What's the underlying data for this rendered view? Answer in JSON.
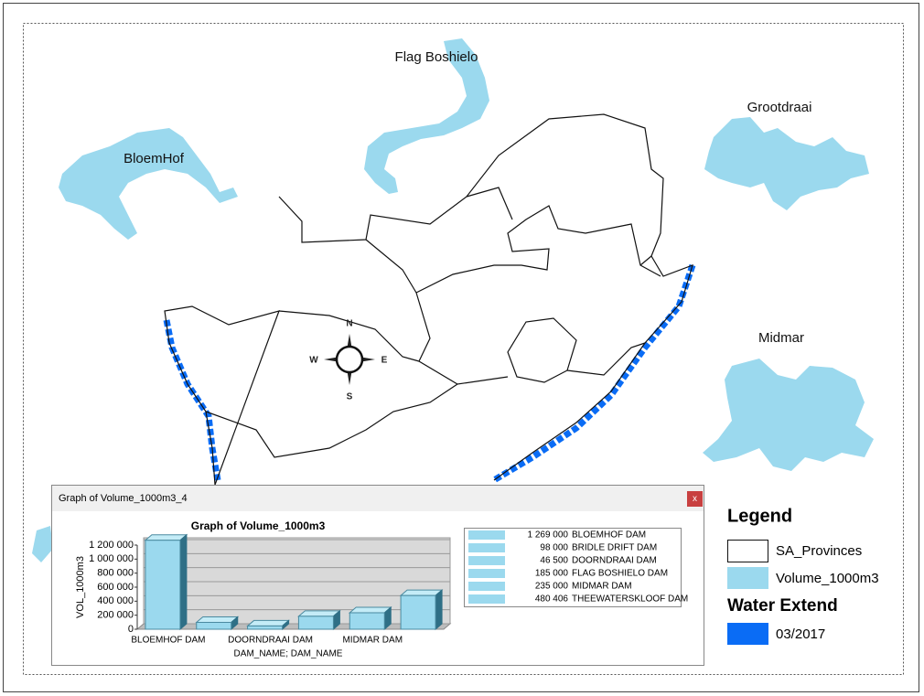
{
  "map": {
    "labels": [
      "Flag Boshielo",
      "Grootdraai",
      "BloemHof",
      "Midmar"
    ],
    "compass": [
      "N",
      "E",
      "S",
      "W"
    ]
  },
  "legend": {
    "title": "Legend",
    "items": [
      "SA_Provinces",
      "Volume_1000m3"
    ],
    "subtitle": "Water Extend",
    "items2": [
      "03/2017"
    ]
  },
  "window": {
    "title": "Graph of Volume_1000m3_4",
    "close": "x"
  },
  "chart_data": {
    "type": "bar3d",
    "title": "Graph of Volume_1000m3",
    "x_label": "DAM_NAME; DAM_NAME",
    "y_label": "VOL_1000m3",
    "categories": [
      "BLOEMHOF DAM",
      null,
      "DOORNDRAAI DAM",
      null,
      "MIDMAR DAM",
      null
    ],
    "values": [
      1269000,
      98000,
      46500,
      185000,
      235000,
      480406
    ],
    "value_labels": [
      "1 269 000",
      "98 000",
      "46 500",
      "185 000",
      "235 000",
      "480 406"
    ],
    "legend_names": [
      "BLOEMHOF DAM",
      "BRIDLE DRIFT DAM",
      "DOORNDRAAI DAM",
      "FLAG BOSHIELO DAM",
      "MIDMAR DAM",
      "THEEWATERSKLOOF DAM"
    ],
    "color": "#9bd9ee",
    "ylim": [
      0,
      1200000
    ],
    "yticks": [
      0,
      {
        "value": 200000,
        "label": "200 000"
      },
      {
        "value": 400000,
        "label": "400 000"
      },
      {
        "value": 600000,
        "label": "600 000"
      },
      {
        "value": 800000,
        "label": "800 000"
      },
      {
        "value": 1000000,
        "label": "1 000 000"
      },
      {
        "value": 1200000,
        "label": "1 200 000"
      }
    ],
    "grid": true
  }
}
